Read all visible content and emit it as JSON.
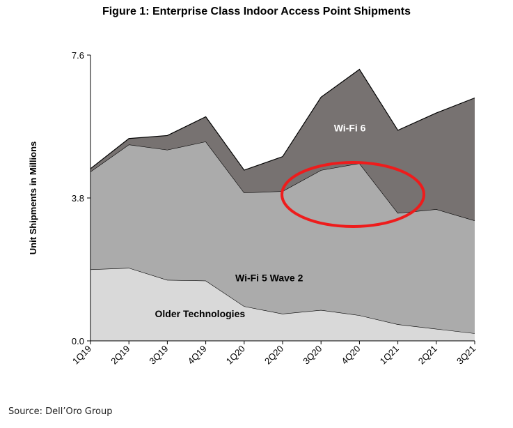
{
  "chart_data": {
    "type": "area",
    "stacked": true,
    "title": "Figure 1: Enterprise Class Indoor Access Point Shipments",
    "ylabel": "Unit Shipments in Millions",
    "xlabel": "",
    "ylim": [
      0.0,
      7.6
    ],
    "yticks": [
      "0.0",
      "3.8",
      "7.6"
    ],
    "categories": [
      "1Q19",
      "2Q19",
      "3Q19",
      "4Q19",
      "1Q20",
      "2Q20",
      "3Q20",
      "4Q20",
      "1Q21",
      "2Q21",
      "3Q21"
    ],
    "series": [
      {
        "name": "Older Technologies",
        "color": "#d9d9d9",
        "values": [
          1.9,
          1.94,
          1.62,
          1.6,
          0.92,
          0.72,
          0.82,
          0.68,
          0.44,
          0.32,
          0.2
        ]
      },
      {
        "name": "Wi-Fi 5 Wave 2",
        "color": "#ababab",
        "values": [
          2.6,
          3.28,
          3.46,
          3.7,
          3.02,
          3.26,
          3.72,
          4.04,
          2.96,
          3.18,
          3.0
        ]
      },
      {
        "name": "Wi-Fi 6",
        "color": "#777271",
        "values": [
          0.08,
          0.16,
          0.38,
          0.66,
          0.6,
          0.92,
          1.94,
          2.5,
          2.2,
          2.56,
          3.26
        ]
      }
    ],
    "grid": false,
    "legend": "none",
    "annotation": "red ellipse highlighting Wi-Fi 5 Wave 2 peak around 3Q20-4Q20"
  },
  "source": "Source: Dell’Oro Group"
}
